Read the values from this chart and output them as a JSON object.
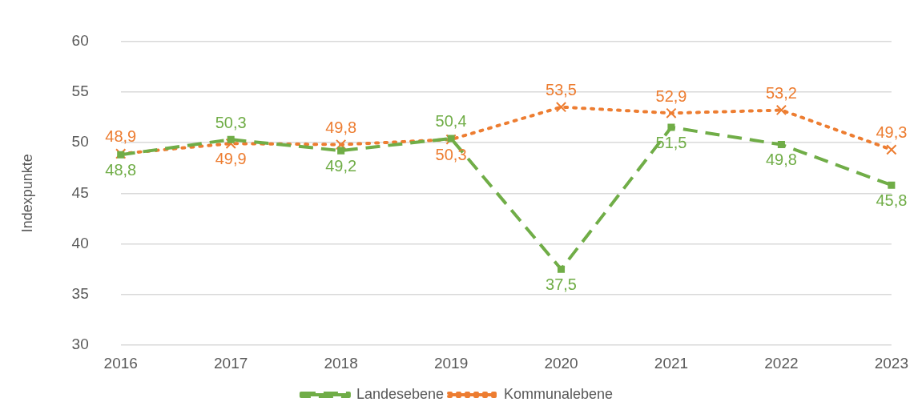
{
  "chart_data": {
    "type": "line",
    "ylabel": "Indexpunkte",
    "categories": [
      "2016",
      "2017",
      "2018",
      "2019",
      "2020",
      "2021",
      "2022",
      "2023"
    ],
    "ylim": [
      30,
      60
    ],
    "yticks": [
      30,
      35,
      40,
      45,
      50,
      55,
      60
    ],
    "grid": "y",
    "legend": "bottom",
    "series": [
      {
        "name": "Landesebene",
        "color": "#70ad47",
        "line_style": "dashed",
        "marker": "square",
        "values": [
          48.8,
          50.3,
          49.2,
          50.4,
          37.5,
          51.5,
          49.8,
          45.8
        ],
        "value_labels": [
          "48,8",
          "50,3",
          "49,2",
          "50,4",
          "37,5",
          "51,5",
          "49,8",
          "45,8"
        ]
      },
      {
        "name": "Kommunalebene",
        "color": "#ed7d31",
        "line_style": "dotted",
        "marker": "cross",
        "values": [
          48.9,
          49.9,
          49.8,
          50.3,
          53.5,
          52.9,
          53.2,
          49.3
        ],
        "value_labels": [
          "48,9",
          "49,9",
          "49,8",
          "50,3",
          "53,5",
          "52,9",
          "53,2",
          "49,3"
        ]
      }
    ]
  }
}
